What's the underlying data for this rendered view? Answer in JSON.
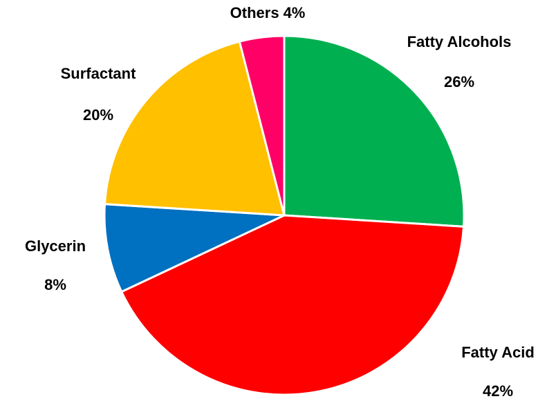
{
  "chart_data": {
    "type": "pie",
    "categories": [
      "Fatty Alcohols",
      "Fatty Acid",
      "Glycerin",
      "Surfactant",
      "Others"
    ],
    "values": [
      26,
      42,
      8,
      20,
      4
    ],
    "value_labels": [
      "26%",
      "42%",
      "8%",
      "20%",
      "4%"
    ],
    "colors": [
      "#00b050",
      "#ff0000",
      "#0070c0",
      "#ffc000",
      "#ff0066"
    ]
  }
}
